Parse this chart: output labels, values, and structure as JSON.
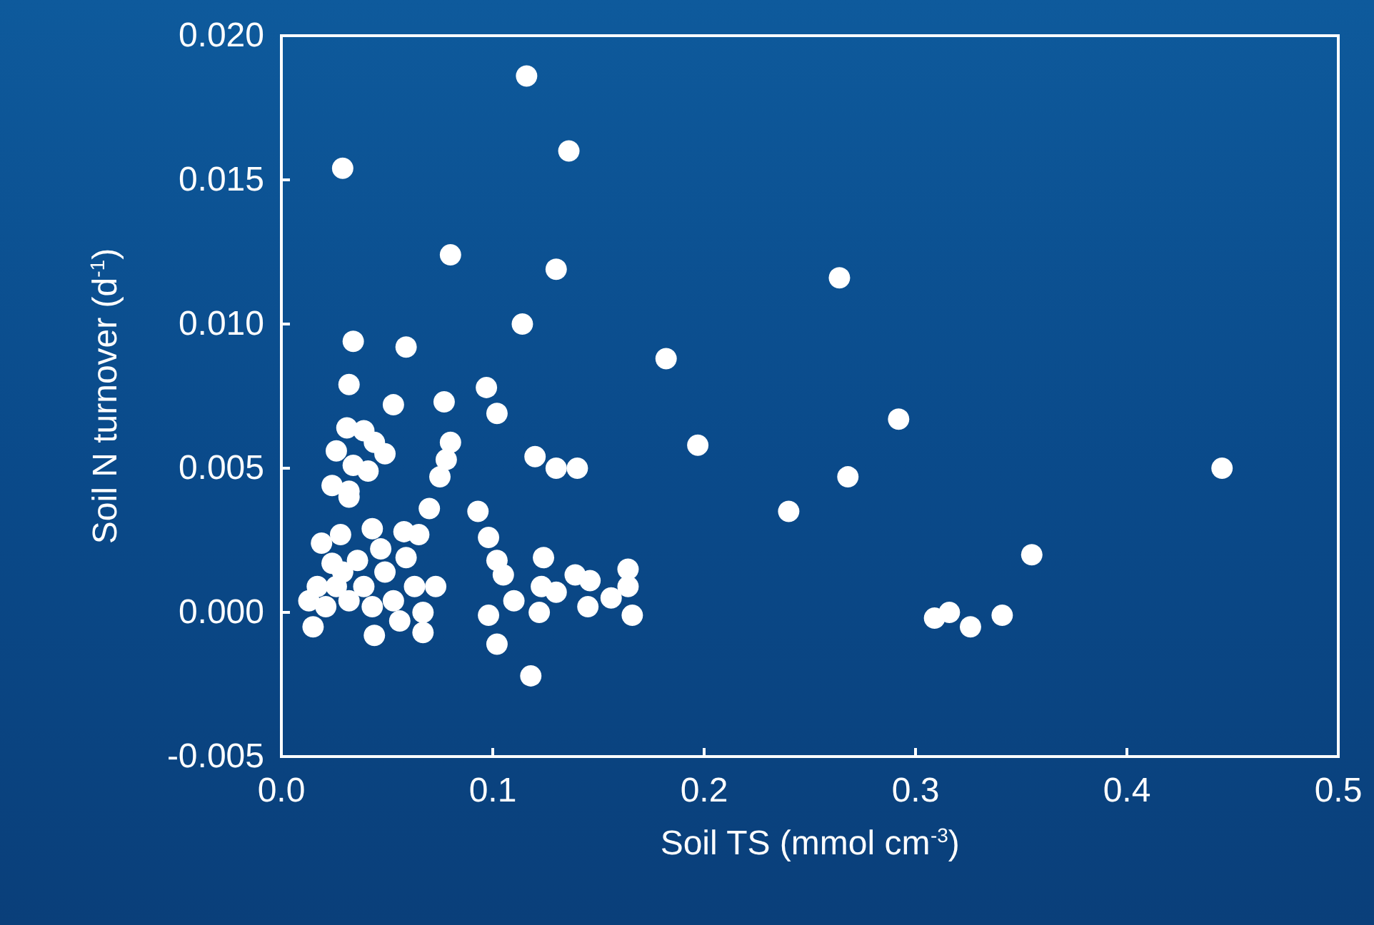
{
  "chart_data": {
    "type": "scatter",
    "xlabel": "Soil TS (mmol cm$^{-3}$)",
    "ylabel": "Soil N turnover (d$^{-1}$)",
    "xlim": [
      0,
      0.5
    ],
    "ylim": [
      -0.005,
      0.02
    ],
    "xticks": [
      {
        "value": 0,
        "label": "0.0"
      },
      {
        "value": 0.1,
        "label": "0.1"
      },
      {
        "value": 0.2,
        "label": "0.2"
      },
      {
        "value": 0.3,
        "label": "0.3"
      },
      {
        "value": 0.4,
        "label": "0.4"
      },
      {
        "value": 0.5,
        "label": "0.5"
      }
    ],
    "yticks": [
      {
        "value": -0.005,
        "label": "-0.005"
      },
      {
        "value": 0,
        "label": "0.000"
      },
      {
        "value": 0.005,
        "label": "0.005"
      },
      {
        "value": 0.01,
        "label": "0.010"
      },
      {
        "value": 0.015,
        "label": "0.015"
      },
      {
        "value": 0.02,
        "label": "0.020"
      }
    ],
    "grid": false,
    "marker": "circle",
    "series": [
      {
        "color": "#ffffff",
        "x": [
          0.116,
          0.136,
          0.029,
          0.08,
          0.13,
          0.264,
          0.114,
          0.034,
          0.059,
          0.182,
          0.032,
          0.097,
          0.102,
          0.077,
          0.292,
          0.197,
          0.053,
          0.12,
          0.13,
          0.14,
          0.268,
          0.24,
          0.445,
          0.355,
          0.309,
          0.316,
          0.326,
          0.341,
          0.08,
          0.078,
          0.075,
          0.093,
          0.098,
          0.102,
          0.105,
          0.098,
          0.102,
          0.118,
          0.124,
          0.123,
          0.122,
          0.11,
          0.139,
          0.146,
          0.145,
          0.164,
          0.164,
          0.166,
          0.156,
          0.13,
          0.031,
          0.026,
          0.034,
          0.024,
          0.032,
          0.041,
          0.049,
          0.044,
          0.039,
          0.032,
          0.07,
          0.065,
          0.058,
          0.043,
          0.019,
          0.028,
          0.024,
          0.017,
          0.015,
          0.029,
          0.036,
          0.039,
          0.044,
          0.049,
          0.053,
          0.059,
          0.063,
          0.067,
          0.067,
          0.073,
          0.043,
          0.032,
          0.021,
          0.013,
          0.056,
          0.026,
          0.047
        ],
        "values": [
          0.0186,
          0.016,
          0.0154,
          0.0124,
          0.0119,
          0.0116,
          0.01,
          0.0094,
          0.0092,
          0.0088,
          0.0079,
          0.0078,
          0.0069,
          0.0073,
          0.0067,
          0.0058,
          0.0072,
          0.0054,
          0.005,
          0.005,
          0.0047,
          0.0035,
          0.005,
          0.002,
          -0.0002,
          0.0,
          -0.0005,
          -0.0001,
          0.0059,
          0.0053,
          0.0047,
          0.0035,
          0.0026,
          0.0018,
          0.0013,
          -0.0001,
          -0.0011,
          -0.0022,
          0.0019,
          0.0009,
          0.0,
          0.0004,
          0.0013,
          0.0011,
          0.0002,
          0.0015,
          0.0009,
          -0.0001,
          0.0005,
          0.0007,
          0.0064,
          0.0056,
          0.0051,
          0.0044,
          0.0042,
          0.0049,
          0.0055,
          0.0059,
          0.0063,
          0.004,
          0.0036,
          0.0027,
          0.0028,
          0.0029,
          0.0024,
          0.0027,
          0.0017,
          0.0009,
          -0.0005,
          0.0014,
          0.0018,
          0.0009,
          -0.0008,
          0.0014,
          0.0004,
          0.0019,
          0.0009,
          0.0,
          -0.0007,
          0.0009,
          0.0002,
          0.0004,
          0.0002,
          0.0004,
          -0.0003,
          0.0009,
          0.0022
        ]
      }
    ]
  }
}
